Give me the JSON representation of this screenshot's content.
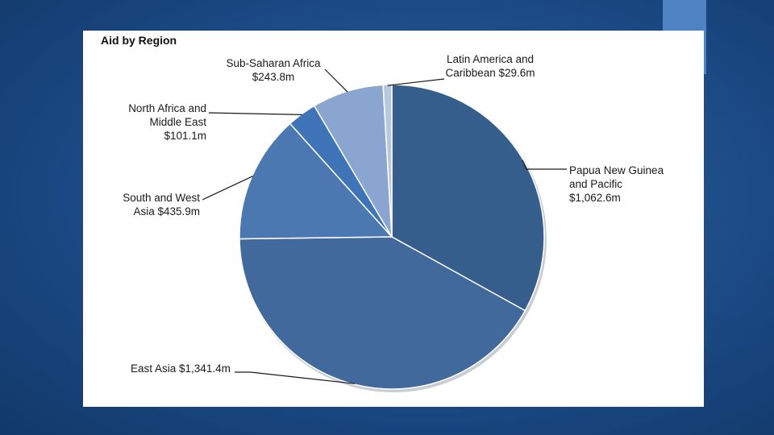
{
  "chart_data": {
    "type": "pie",
    "title": "Aid by Region",
    "unit": "$m",
    "categories": [
      "Papua New Guinea and Pacific",
      "East Asia",
      "South and West Asia",
      "North Africa and Middle East",
      "Sub-Saharan Africa",
      "Latin America and Caribbean"
    ],
    "values": [
      1062.6,
      1341.4,
      435.9,
      101.1,
      243.8,
      29.6
    ],
    "colors": [
      "#365e8c",
      "#42699c",
      "#4b78b0",
      "#3f74b8",
      "#8aa5d0",
      "#b9c7e0"
    ],
    "labels": [
      {
        "lines": [
          "Papua New Guinea",
          "and Pacific",
          "$1,062.6m"
        ]
      },
      {
        "lines": [
          "East Asia $1,341.4m"
        ]
      },
      {
        "lines": [
          "South and West",
          "Asia $435.9m"
        ]
      },
      {
        "lines": [
          "North Africa and",
          "Middle East",
          "$101.1m"
        ]
      },
      {
        "lines": [
          "Sub-Saharan Africa",
          "$243.8m"
        ]
      },
      {
        "lines": [
          "Latin America and",
          "Caribbean $29.6m"
        ]
      }
    ],
    "legend": "none"
  }
}
